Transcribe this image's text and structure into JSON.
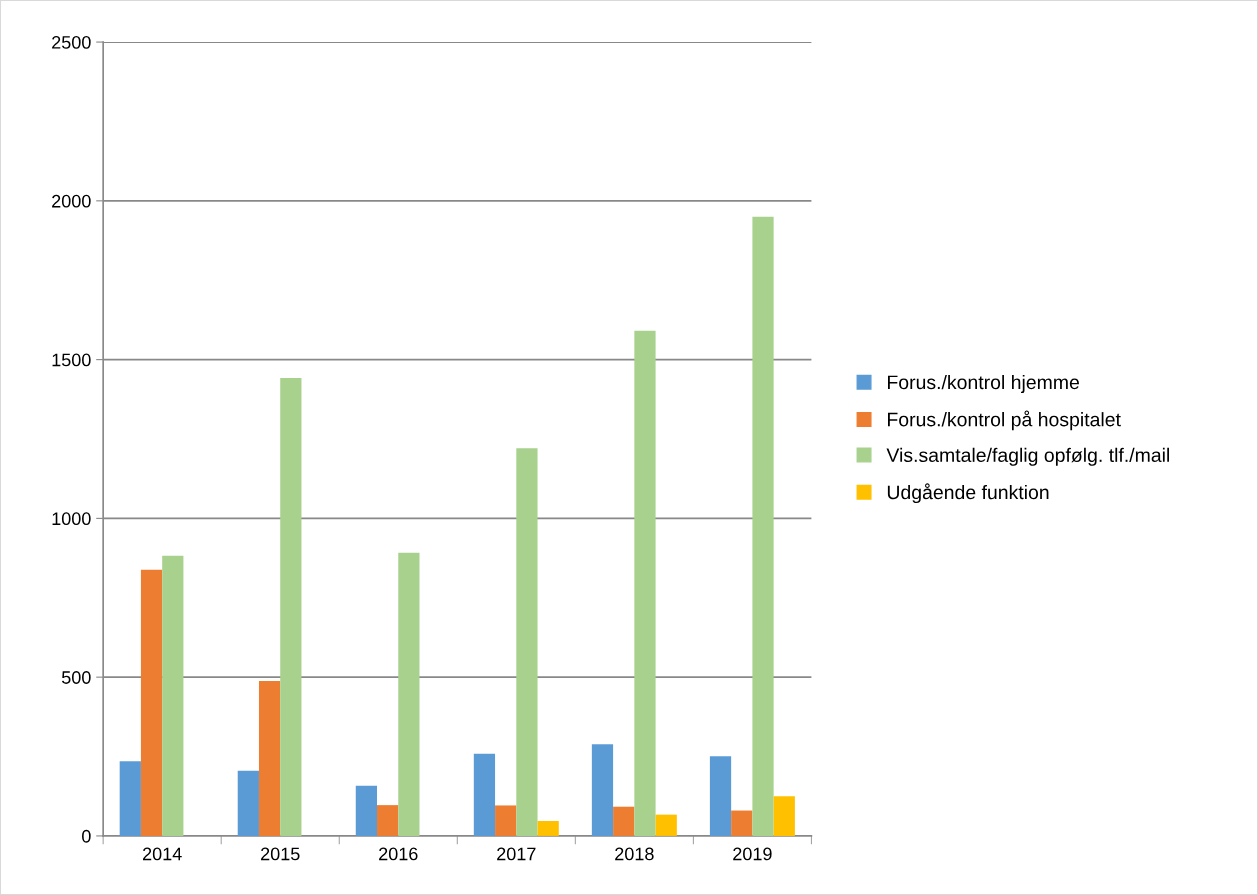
{
  "chart_data": {
    "type": "bar",
    "categories": [
      "2014",
      "2015",
      "2016",
      "2017",
      "2018",
      "2019"
    ],
    "series": [
      {
        "name": "Forus./kontrol hjemme",
        "color": "#5b9bd5",
        "values": [
          235,
          205,
          158,
          259,
          289,
          251
        ]
      },
      {
        "name": "Forus./kontrol på hospitalet",
        "color": "#ed7d31",
        "values": [
          838,
          488,
          97,
          96,
          92,
          80
        ]
      },
      {
        "name": "Vis.samtale/faglig opfølg. tlf./mail",
        "color": "#a9d18e",
        "values": [
          882,
          1442,
          892,
          1221,
          1591,
          1950
        ]
      },
      {
        "name": "Udgående funktion",
        "color": "#ffc000",
        "values": [
          null,
          null,
          null,
          47,
          67,
          125
        ]
      }
    ],
    "ylim": [
      0,
      2500
    ],
    "yticks": [
      0,
      500,
      1000,
      1500,
      2000,
      2500
    ],
    "grid": "y",
    "legend": "right"
  }
}
